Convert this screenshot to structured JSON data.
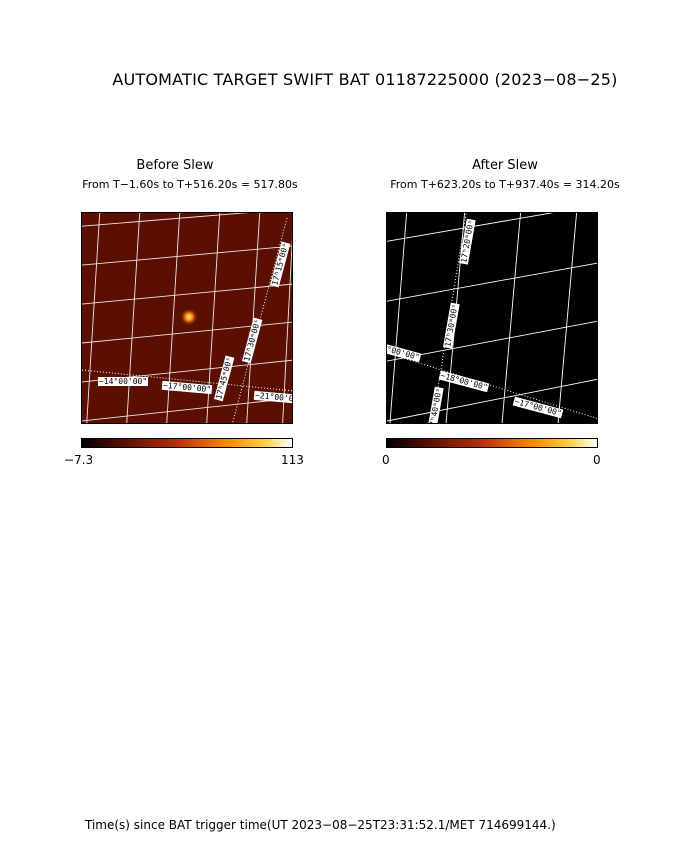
{
  "title": "AUTOMATIC TARGET SWIFT BAT 01187225000 (2023−08−25)",
  "before": {
    "title": "Before Slew",
    "subtitle": "From T−1.60s to T+516.20s = 517.80s",
    "cbar_min": "−7.3",
    "cbar_max": "113",
    "grid_labels": [
      "−14°00'00\"",
      "−17°00'00\"",
      "−21°00'00\"",
      "17ʰ45ᵐ00ˢ",
      "17ʰ30ᵐ00ˢ",
      "17ʰ15ᵐ00ˢ"
    ]
  },
  "after": {
    "title": "After Slew",
    "subtitle": "From T+623.20s to T+937.40s = 314.20s",
    "cbar_min": "0",
    "cbar_max": "0",
    "grid_labels": [
      "−16°00'00\"",
      "−18°00'00\"",
      "−17°00'00\"",
      "17ʰ40ᵐ00ˢ",
      "17ʰ30ᵐ00ˢ",
      "17ʰ20ᵐ00ˢ"
    ]
  },
  "footer": "Time(s) since BAT trigger time(UT 2023−08−25T23:31:52.1/MET 714699144.)",
  "colors": {
    "map_bg": "#5a0f00",
    "after_bg": "#000000",
    "grid": "#ffffff"
  }
}
